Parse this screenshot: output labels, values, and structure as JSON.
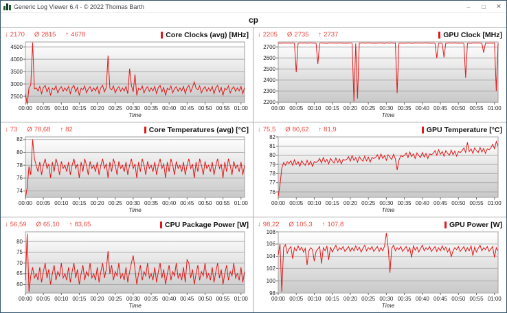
{
  "window": {
    "title": "Generic Log Viewer 6.4 - © 2022 Thomas Barth",
    "controls": {
      "minimize": "–",
      "maximize": "□",
      "close": "✕"
    }
  },
  "header": {
    "title": "cp"
  },
  "icons": {
    "min": "↓",
    "avg": "Ø",
    "max": "↑"
  },
  "colors": {
    "series": "#e31717",
    "stats_text": "#e8463c",
    "plot_border": "#9e9e9e",
    "gridline": "#aaaaaa",
    "plot_gradient_top": "#ffffff",
    "plot_gradient_bottom": "#c9c9c9"
  },
  "time_axis": {
    "minutes": [
      0,
      5,
      10,
      15,
      20,
      25,
      30,
      35,
      40,
      45,
      50,
      55,
      60
    ],
    "labels": [
      "00:00",
      "00:05",
      "00:10",
      "00:15",
      "00:20",
      "00:25",
      "00:30",
      "00:35",
      "00:40",
      "00:45",
      "00:50",
      "00:55",
      "01:00"
    ]
  },
  "chart_data": [
    {
      "type": "line",
      "title": "Core Clocks (avg) [MHz]",
      "stats": {
        "min": "2170",
        "avg": "2815",
        "max": "4678"
      },
      "xlabel": "Time",
      "ylim": [
        2250,
        4700
      ],
      "yticks": [
        2500,
        3000,
        3500,
        4000,
        4500
      ],
      "xlim": [
        0,
        61
      ],
      "x_step_min": 0.5,
      "values": [
        2600,
        2170,
        2850,
        2950,
        4678,
        2800,
        2840,
        2720,
        2900,
        2610,
        2850,
        2940,
        2680,
        2860,
        2540,
        2830,
        2760,
        2920,
        2640,
        2800,
        2890,
        2700,
        2840,
        2720,
        2900,
        2610,
        2850,
        2940,
        2680,
        2860,
        2540,
        2830,
        2760,
        2920,
        2640,
        2800,
        2890,
        2700,
        2840,
        2720,
        2900,
        2610,
        2850,
        2940,
        2680,
        2860,
        4150,
        2830,
        2760,
        2920,
        2640,
        2800,
        2890,
        2700,
        2840,
        2720,
        2900,
        2610,
        3620,
        2940,
        2680,
        3380,
        2540,
        2830,
        2760,
        2920,
        2640,
        2800,
        2890,
        2700,
        2840,
        2720,
        2900,
        2610,
        2850,
        2940,
        2680,
        2860,
        2540,
        2830,
        2760,
        2920,
        2640,
        2800,
        2890,
        2700,
        2840,
        2720,
        2900,
        2610,
        2850,
        2940,
        2680,
        2860,
        3080,
        2830,
        2760,
        2920,
        2640,
        2800,
        2890,
        2700,
        2840,
        2720,
        2900,
        2610,
        2850,
        2940,
        2680,
        2860,
        2540,
        2830,
        2760,
        2920,
        2640,
        2800,
        2890,
        2700,
        2840,
        2720,
        2900,
        2610,
        2850
      ]
    },
    {
      "type": "line",
      "title": "GPU Clock [MHz]",
      "stats": {
        "min": "2205",
        "avg": "2735",
        "max": "2737"
      },
      "xlabel": "Time",
      "ylim": [
        2195,
        2745
      ],
      "yticks": [
        2200,
        2300,
        2400,
        2500,
        2600,
        2700
      ],
      "xlim": [
        0,
        61
      ],
      "x_step_min": 0.5,
      "values": [
        2734,
        2735,
        2733,
        2736,
        2734,
        2735,
        2735,
        2733,
        2736,
        2734,
        2470,
        2732,
        2736,
        2735,
        2734,
        2736,
        2733,
        2735,
        2736,
        2734,
        2735,
        2733,
        2545,
        2733,
        2736,
        2734,
        2735,
        2732,
        2736,
        2735,
        2734,
        2736,
        2733,
        2735,
        2736,
        2734,
        2735,
        2733,
        2735,
        2733,
        2736,
        2734,
        2205,
        2732,
        2230,
        2735,
        2734,
        2736,
        2733,
        2735,
        2736,
        2734,
        2735,
        2733,
        2735,
        2733,
        2736,
        2734,
        2735,
        2732,
        2736,
        2735,
        2734,
        2736,
        2733,
        2735,
        2280,
        2734,
        2735,
        2733,
        2735,
        2733,
        2736,
        2734,
        2735,
        2732,
        2736,
        2735,
        2734,
        2736,
        2733,
        2735,
        2736,
        2734,
        2735,
        2733,
        2735,
        2733,
        2598,
        2734,
        2735,
        2732,
        2605,
        2735,
        2734,
        2736,
        2733,
        2735,
        2736,
        2734,
        2735,
        2733,
        2735,
        2733,
        2420,
        2734,
        2735,
        2732,
        2736,
        2735,
        2734,
        2736,
        2733,
        2735,
        2648,
        2734,
        2735,
        2733,
        2735,
        2733,
        2736,
        2300,
        2735
      ]
    },
    {
      "type": "line",
      "title": "Core Temperatures (avg) [°C]",
      "stats": {
        "min": "73",
        "avg": "78,68",
        "max": "82"
      },
      "xlabel": "Time",
      "ylim": [
        73,
        82.4
      ],
      "yticks": [
        74,
        76,
        78,
        80,
        82
      ],
      "xlim": [
        0,
        61
      ],
      "x_step_min": 0.5,
      "values": [
        73,
        74.5,
        77.8,
        76.5,
        82,
        79,
        78,
        77,
        78.5,
        76.5,
        78,
        79,
        77.5,
        78.2,
        76,
        78.5,
        77,
        79,
        78,
        76.5,
        78.6,
        77.5,
        78,
        77,
        78.5,
        76.5,
        78,
        79,
        77.5,
        78.2,
        76,
        78.5,
        77,
        79,
        78,
        76.5,
        78.6,
        77.5,
        78,
        77,
        78.5,
        76.5,
        78,
        79,
        77.5,
        78.2,
        76,
        78.5,
        77,
        79,
        78,
        76.5,
        78.6,
        77.5,
        78,
        77,
        78.5,
        76.5,
        78,
        79,
        77.5,
        78.2,
        76,
        78.5,
        77,
        79,
        78,
        76.5,
        78.6,
        77.5,
        78,
        77,
        78.5,
        76.5,
        78,
        79,
        77.5,
        78.2,
        76,
        78.5,
        77,
        79,
        78,
        76.5,
        78.6,
        77.5,
        78,
        77,
        78.5,
        76.5,
        78,
        79,
        77.5,
        78.2,
        76,
        78.5,
        77,
        79,
        78,
        76.5,
        78.6,
        77.5,
        78,
        77,
        78.5,
        76.5,
        78,
        79,
        77.5,
        78.2,
        76,
        78.5,
        77,
        79,
        78,
        76.5,
        78.6,
        77.5,
        78,
        77,
        78.5,
        76.5,
        78
      ]
    },
    {
      "type": "line",
      "title": "GPU Temperature [°C]",
      "stats": {
        "min": "75,5",
        "avg": "80,62",
        "max": "81,9"
      },
      "xlabel": "Time",
      "ylim": [
        75.4,
        82
      ],
      "yticks": [
        76,
        77,
        78,
        79,
        80,
        81,
        82
      ],
      "xlim": [
        0,
        61
      ],
      "x_step_min": 0.5,
      "values": [
        75.5,
        76.8,
        78.6,
        79.2,
        78.9,
        79.3,
        79.1,
        79.4,
        78.9,
        79.5,
        79,
        79.3,
        78.8,
        79.4,
        79.1,
        78.9,
        79.45,
        78.95,
        79.35,
        78.8,
        79.3,
        79.2,
        79.35,
        79.65,
        79.15,
        79.75,
        79.25,
        79.55,
        79.05,
        79.65,
        79.35,
        79.15,
        79.7,
        79.2,
        79.6,
        79.05,
        79.55,
        79.45,
        79.55,
        79.85,
        79.35,
        79.95,
        79.45,
        79.75,
        79.25,
        79.85,
        79.55,
        79.35,
        79.9,
        79.4,
        79.8,
        79.25,
        79.75,
        79.65,
        79.75,
        80.05,
        79.55,
        80.15,
        79.65,
        79.95,
        79.45,
        80.05,
        79.75,
        79.55,
        80.1,
        79.6,
        78.4,
        79.45,
        79.95,
        79.85,
        79.95,
        80.25,
        79.75,
        80.35,
        79.85,
        80.15,
        79.65,
        80.25,
        79.95,
        79.75,
        80.3,
        79.8,
        80.2,
        79.65,
        80.15,
        80.05,
        80.2,
        80.5,
        80,
        80.6,
        80.1,
        80.4,
        79.9,
        80.5,
        80.2,
        80,
        80.55,
        80.05,
        80.45,
        79.9,
        80.4,
        80.3,
        80.5,
        80.8,
        80.3,
        81.4,
        80.4,
        80.7,
        80.2,
        80.8,
        80.5,
        80.3,
        80.85,
        80.35,
        80.75,
        80.2,
        80.7,
        80.6,
        80.8,
        81.2,
        80.7,
        81.5,
        81
      ]
    },
    {
      "type": "line",
      "title": "CPU Package Power [W]",
      "stats": {
        "min": "56,59",
        "avg": "65,10",
        "max": "83,65"
      },
      "xlabel": "Time",
      "ylim": [
        56,
        84.5
      ],
      "yticks": [
        60,
        65,
        70,
        75,
        80
      ],
      "xlim": [
        0,
        61
      ],
      "x_step_min": 0.5,
      "values": [
        62,
        83.65,
        56.59,
        64,
        68,
        63,
        65,
        62,
        68,
        61,
        66,
        70,
        63,
        67,
        60,
        65,
        69,
        62,
        66,
        64,
        70,
        63,
        65,
        62,
        68,
        61,
        66,
        70,
        63,
        67,
        60,
        65,
        69,
        62,
        66,
        64,
        70,
        63,
        65,
        62,
        68,
        61,
        66,
        70,
        63,
        67,
        75.5,
        65,
        69,
        62,
        66,
        64,
        70,
        63,
        65,
        62,
        68,
        61,
        66,
        70,
        73.5,
        67,
        60,
        65,
        69,
        62,
        66,
        64,
        70,
        63,
        65,
        62,
        68,
        61,
        66,
        70,
        63,
        67,
        60,
        65,
        69,
        62,
        66,
        64,
        70,
        63,
        65,
        62,
        68,
        61,
        71.5,
        70,
        63,
        67,
        60,
        65,
        69,
        62,
        66,
        64,
        70,
        63,
        65,
        62,
        68,
        61,
        66,
        70,
        63,
        67,
        60,
        65,
        69,
        62,
        66,
        64,
        70,
        63,
        65,
        62,
        68,
        61,
        66
      ]
    },
    {
      "type": "line",
      "title": "GPU Power [W]",
      "stats": {
        "min": "98,22",
        "avg": "105,3",
        "max": "107,8"
      },
      "xlabel": "Time",
      "ylim": [
        98,
        108
      ],
      "yticks": [
        98,
        100,
        102,
        104,
        106,
        108
      ],
      "xlim": [
        0,
        61
      ],
      "x_step_min": 0.5,
      "values": [
        104.2,
        106,
        98.22,
        105.5,
        105.9,
        104.5,
        105.2,
        105.6,
        103.6,
        105.4,
        104.9,
        105.7,
        105,
        105.5,
        104.7,
        105.3,
        102.6,
        104.9,
        105.4,
        105.1,
        103.2,
        104.8,
        105.2,
        105.6,
        102.8,
        105.4,
        104.9,
        105.7,
        103.4,
        105.5,
        104.7,
        105.3,
        105.8,
        104.9,
        105.4,
        105.1,
        105.6,
        104.8,
        105.2,
        105.6,
        104.8,
        105.4,
        104.9,
        105.7,
        105,
        105.5,
        104.7,
        105.3,
        105.8,
        104.9,
        105.4,
        105.1,
        105.6,
        104.8,
        105.2,
        105.6,
        104.8,
        105.4,
        104.9,
        105.7,
        107.8,
        105.5,
        101.3,
        105.3,
        105.8,
        104.9,
        105.4,
        105.1,
        105.6,
        104.8,
        105.2,
        105.6,
        104.8,
        105.4,
        103.8,
        105.7,
        105,
        105.5,
        104.7,
        105.3,
        105.8,
        104.9,
        105.4,
        105.1,
        105.6,
        104.8,
        105.2,
        105.6,
        104.8,
        105.4,
        104.9,
        105.7,
        105,
        105.5,
        104.7,
        105.3,
        103.9,
        104.9,
        105.4,
        105.1,
        105.6,
        104.8,
        105.2,
        105.6,
        104.8,
        105.4,
        104.9,
        105.7,
        104.1,
        105.5,
        104.7,
        105.3,
        105.8,
        104.9,
        105.4,
        105.1,
        105.6,
        104.8,
        105.2,
        105.6,
        103.8,
        105.4,
        104.9
      ]
    }
  ]
}
